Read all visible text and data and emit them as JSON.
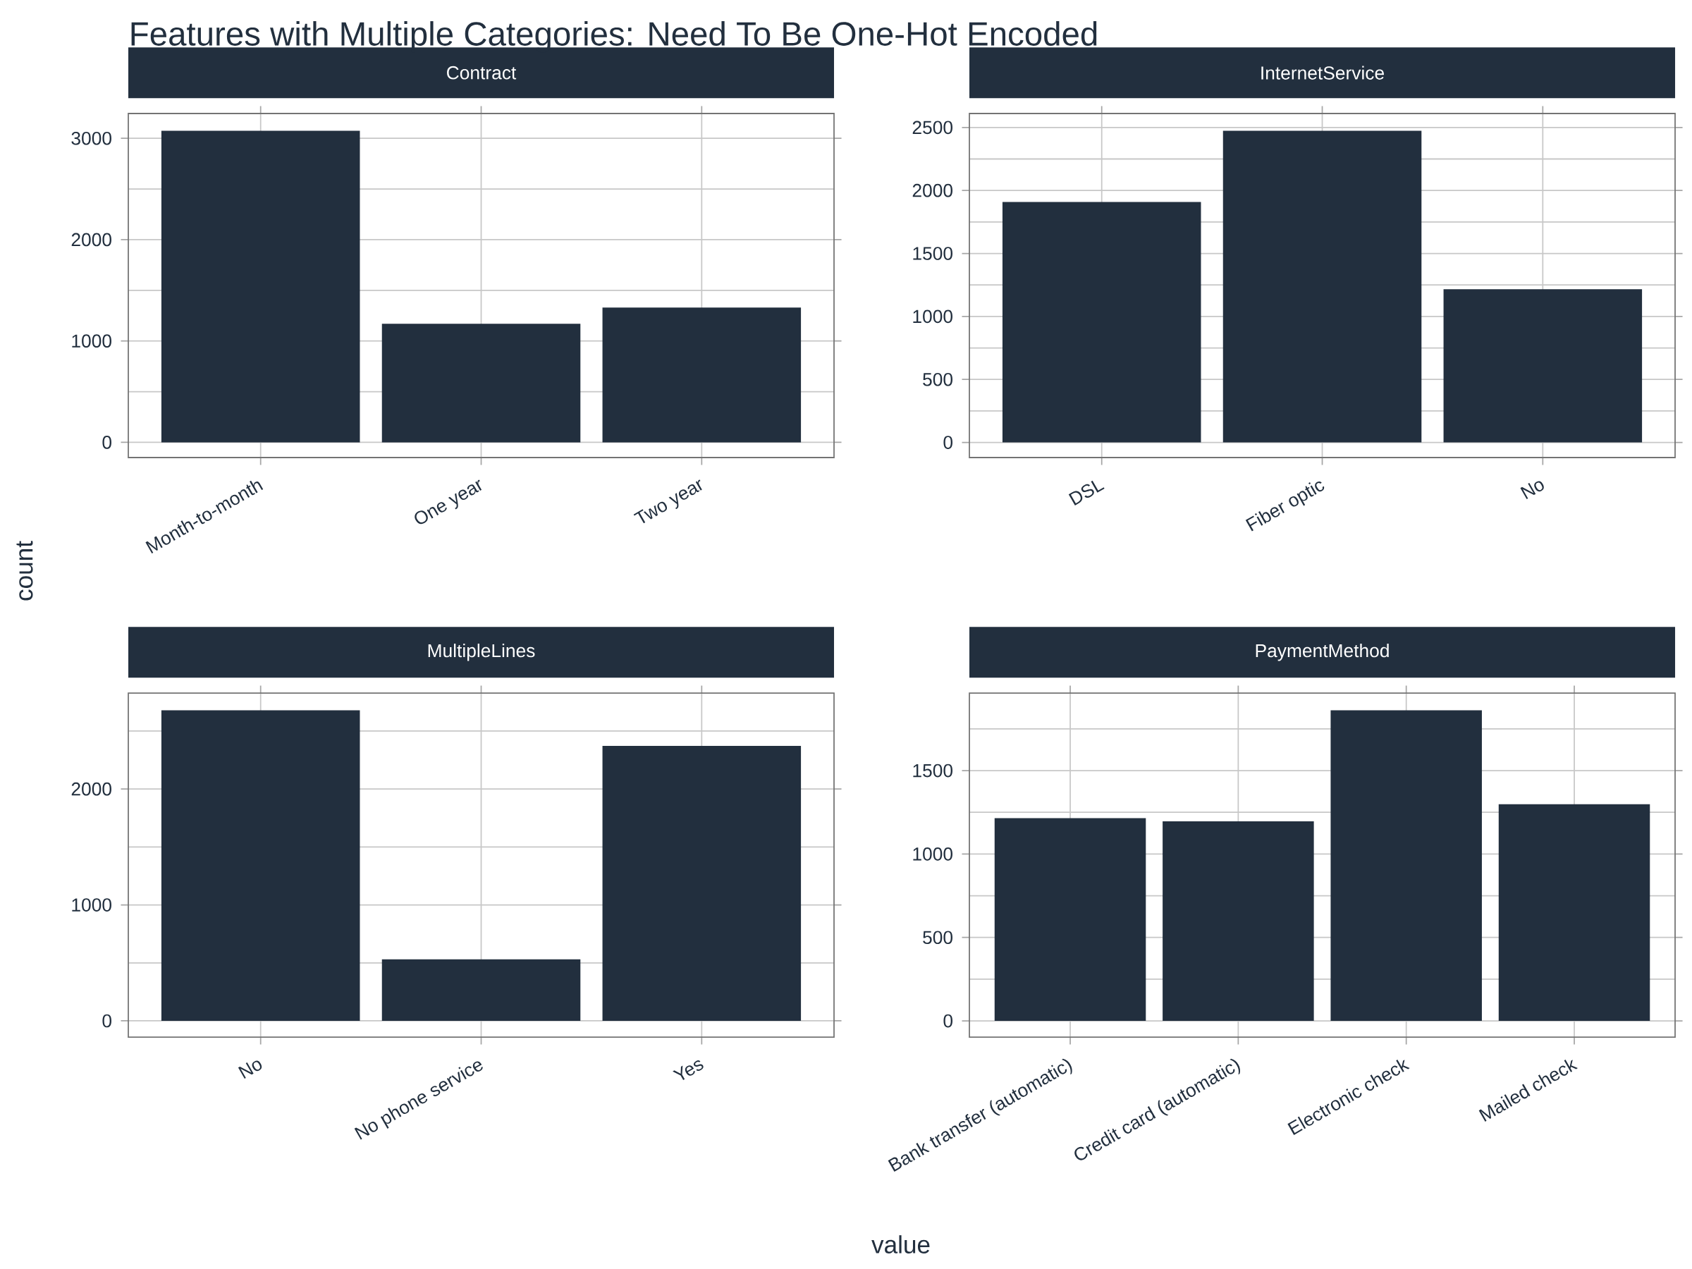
{
  "chart_data": [
    {
      "type": "bar",
      "title": "Contract",
      "annotations": [
        "Features with Multiple Categories: Need To Be One-Hot Encoded"
      ],
      "ylabel": "count",
      "categories": [
        "Month-to-month",
        "One year",
        "Two year"
      ],
      "values": [
        3074,
        1170,
        1330
      ],
      "color": "#222f3e",
      "ylim": [
        -150,
        3245
      ],
      "yticks": [
        0,
        1000,
        2000,
        3000
      ],
      "grid": true
    },
    {
      "type": "bar",
      "title": "InternetService",
      "categories": [
        "DSL",
        "Fiber optic",
        "No"
      ],
      "values": [
        1909,
        2474,
        1216
      ],
      "color": "#222f3e",
      "ylim": [
        -120,
        2611
      ],
      "yticks": [
        0,
        500,
        1000,
        1500,
        2000,
        2500
      ],
      "grid": true
    },
    {
      "type": "bar",
      "title": "MultipleLines",
      "xlabel": "value",
      "categories": [
        "No",
        "No phone service",
        "Yes"
      ],
      "values": [
        2679,
        530,
        2372
      ],
      "color": "#222f3e",
      "ylim": [
        -140,
        2828
      ],
      "yticks": [
        0,
        1000,
        2000
      ],
      "grid": true
    },
    {
      "type": "bar",
      "title": "PaymentMethod",
      "categories": [
        "Bank transfer (automatic)",
        "Credit card (automatic)",
        "Electronic check",
        "Mailed check"
      ],
      "values": [
        1215,
        1196,
        1862,
        1299
      ],
      "color": "#222f3e",
      "ylim": [
        -97,
        1965
      ],
      "yticks": [
        0,
        500,
        1000,
        1500
      ],
      "grid": true
    }
  ]
}
